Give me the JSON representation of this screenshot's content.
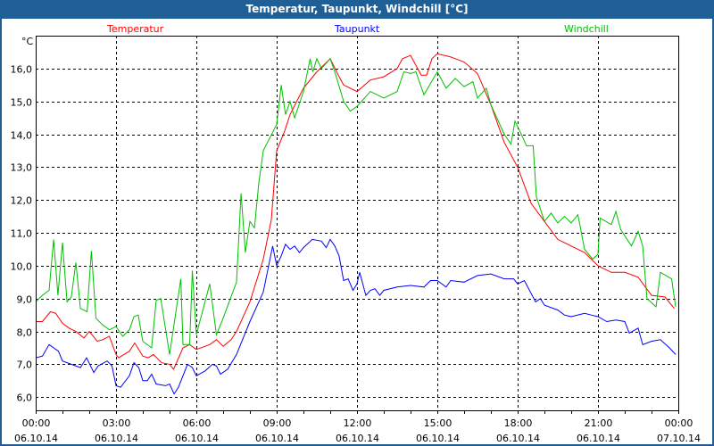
{
  "window": {
    "title": "Temperatur, Taupunkt, Windchill [°C]"
  },
  "chart_data": {
    "type": "line",
    "title": "Temperatur, Taupunkt, Windchill [°C]",
    "ylabel": "°C",
    "xlabel": "",
    "ylim": [
      5.6,
      17.0
    ],
    "xlim": [
      0,
      24
    ],
    "grid": true,
    "legend_placement": "top",
    "yticks": [
      6,
      7,
      8,
      9,
      10,
      11,
      12,
      13,
      14,
      15,
      16
    ],
    "ytick_labels": [
      "6,0",
      "7,0",
      "8,0",
      "9,0",
      "10,0",
      "11,0",
      "12,0",
      "13,0",
      "14,0",
      "15,0",
      "16,0"
    ],
    "xticks": [
      0,
      3,
      6,
      9,
      12,
      15,
      18,
      21,
      24
    ],
    "xtick_labels": [
      {
        "time": "00:00",
        "date": "06.10.14"
      },
      {
        "time": "03:00",
        "date": "06.10.14"
      },
      {
        "time": "06:00",
        "date": "06.10.14"
      },
      {
        "time": "09:00",
        "date": "06.10.14"
      },
      {
        "time": "12:00",
        "date": "06.10.14"
      },
      {
        "time": "15:00",
        "date": "06.10.14"
      },
      {
        "time": "18:00",
        "date": "06.10.14"
      },
      {
        "time": "21:00",
        "date": "06.10.14"
      },
      {
        "time": "00:00",
        "date": "07.10.14"
      }
    ],
    "series": [
      {
        "name": "Temperatur",
        "color": "#ff0000",
        "points": [
          [
            0,
            8.3
          ],
          [
            0.25,
            8.3
          ],
          [
            0.55,
            8.6
          ],
          [
            0.75,
            8.55
          ],
          [
            1,
            8.25
          ],
          [
            1.25,
            8.1
          ],
          [
            1.5,
            8.0
          ],
          [
            1.8,
            7.8
          ],
          [
            2,
            8.0
          ],
          [
            2.3,
            7.7
          ],
          [
            2.5,
            7.75
          ],
          [
            2.75,
            7.85
          ],
          [
            3,
            7.3
          ],
          [
            3.1,
            7.2
          ],
          [
            3.5,
            7.4
          ],
          [
            3.7,
            7.65
          ],
          [
            4,
            7.25
          ],
          [
            4.2,
            7.2
          ],
          [
            4.4,
            7.3
          ],
          [
            4.7,
            7.05
          ],
          [
            5,
            7.0
          ],
          [
            5.15,
            6.85
          ],
          [
            5.5,
            7.5
          ],
          [
            5.75,
            7.6
          ],
          [
            6,
            7.45
          ],
          [
            6.5,
            7.6
          ],
          [
            6.75,
            7.75
          ],
          [
            7,
            7.55
          ],
          [
            7.3,
            7.75
          ],
          [
            7.5,
            8.0
          ],
          [
            8,
            8.9
          ],
          [
            8.5,
            10.2
          ],
          [
            8.8,
            11.4
          ],
          [
            9,
            13.5
          ],
          [
            9.3,
            14.1
          ],
          [
            9.5,
            14.6
          ],
          [
            10,
            15.4
          ],
          [
            10.5,
            15.9
          ],
          [
            11,
            16.3
          ],
          [
            11.3,
            15.8
          ],
          [
            11.5,
            15.5
          ],
          [
            12,
            15.3
          ],
          [
            12.5,
            15.65
          ],
          [
            13,
            15.75
          ],
          [
            13.5,
            16.0
          ],
          [
            13.7,
            16.3
          ],
          [
            14,
            16.4
          ],
          [
            14.2,
            16.1
          ],
          [
            14.4,
            15.8
          ],
          [
            14.6,
            15.8
          ],
          [
            14.8,
            16.3
          ],
          [
            15,
            16.45
          ],
          [
            15.5,
            16.35
          ],
          [
            16,
            16.2
          ],
          [
            16.5,
            15.85
          ],
          [
            17,
            14.9
          ],
          [
            17.5,
            13.75
          ],
          [
            18,
            13.0
          ],
          [
            18.5,
            11.9
          ],
          [
            19,
            11.35
          ],
          [
            19.5,
            10.8
          ],
          [
            20,
            10.6
          ],
          [
            20.5,
            10.4
          ],
          [
            21,
            10.0
          ],
          [
            21.5,
            9.8
          ],
          [
            22,
            9.8
          ],
          [
            22.5,
            9.65
          ],
          [
            23,
            9.1
          ],
          [
            23.5,
            9.05
          ],
          [
            23.85,
            8.7
          ]
        ]
      },
      {
        "name": "Taupunkt",
        "color": "#0000ff",
        "points": [
          [
            0,
            7.2
          ],
          [
            0.25,
            7.25
          ],
          [
            0.5,
            7.6
          ],
          [
            0.85,
            7.4
          ],
          [
            1,
            7.1
          ],
          [
            1.33,
            7.0
          ],
          [
            1.67,
            6.9
          ],
          [
            1.9,
            7.2
          ],
          [
            2.17,
            6.75
          ],
          [
            2.33,
            6.95
          ],
          [
            2.67,
            7.1
          ],
          [
            2.85,
            6.95
          ],
          [
            3,
            6.35
          ],
          [
            3.17,
            6.3
          ],
          [
            3.5,
            6.65
          ],
          [
            3.67,
            7.05
          ],
          [
            3.85,
            6.9
          ],
          [
            4,
            6.5
          ],
          [
            4.17,
            6.5
          ],
          [
            4.33,
            6.7
          ],
          [
            4.5,
            6.4
          ],
          [
            4.85,
            6.35
          ],
          [
            5,
            6.4
          ],
          [
            5.17,
            6.1
          ],
          [
            5.33,
            6.3
          ],
          [
            5.67,
            7.0
          ],
          [
            5.85,
            6.9
          ],
          [
            6,
            6.65
          ],
          [
            6.33,
            6.8
          ],
          [
            6.6,
            7.0
          ],
          [
            6.75,
            6.95
          ],
          [
            6.9,
            6.7
          ],
          [
            7.17,
            6.85
          ],
          [
            7.5,
            7.3
          ],
          [
            8,
            8.3
          ],
          [
            8.5,
            9.2
          ],
          [
            8.85,
            10.6
          ],
          [
            9,
            10.0
          ],
          [
            9.17,
            10.3
          ],
          [
            9.33,
            10.65
          ],
          [
            9.5,
            10.5
          ],
          [
            9.67,
            10.6
          ],
          [
            9.85,
            10.4
          ],
          [
            10,
            10.55
          ],
          [
            10.33,
            10.8
          ],
          [
            10.67,
            10.75
          ],
          [
            10.85,
            10.55
          ],
          [
            11,
            10.8
          ],
          [
            11.17,
            10.6
          ],
          [
            11.33,
            10.3
          ],
          [
            11.5,
            9.55
          ],
          [
            11.67,
            9.6
          ],
          [
            11.85,
            9.25
          ],
          [
            12,
            9.45
          ],
          [
            12.1,
            9.8
          ],
          [
            12.33,
            9.1
          ],
          [
            12.5,
            9.25
          ],
          [
            12.67,
            9.3
          ],
          [
            12.85,
            9.1
          ],
          [
            13,
            9.25
          ],
          [
            13.5,
            9.35
          ],
          [
            14,
            9.4
          ],
          [
            14.5,
            9.35
          ],
          [
            14.75,
            9.55
          ],
          [
            15,
            9.55
          ],
          [
            15.33,
            9.35
          ],
          [
            15.5,
            9.55
          ],
          [
            16,
            9.5
          ],
          [
            16.5,
            9.7
          ],
          [
            17,
            9.75
          ],
          [
            17.5,
            9.6
          ],
          [
            17.85,
            9.6
          ],
          [
            18,
            9.45
          ],
          [
            18.25,
            9.55
          ],
          [
            18.67,
            8.9
          ],
          [
            18.85,
            9.0
          ],
          [
            19,
            8.8
          ],
          [
            19.5,
            8.65
          ],
          [
            19.75,
            8.5
          ],
          [
            20,
            8.45
          ],
          [
            20.5,
            8.55
          ],
          [
            20.75,
            8.5
          ],
          [
            21,
            8.45
          ],
          [
            21.33,
            8.3
          ],
          [
            21.67,
            8.35
          ],
          [
            22,
            8.3
          ],
          [
            22.17,
            7.95
          ],
          [
            22.5,
            8.1
          ],
          [
            22.67,
            7.6
          ],
          [
            23,
            7.7
          ],
          [
            23.33,
            7.75
          ],
          [
            23.67,
            7.5
          ],
          [
            23.9,
            7.3
          ]
        ]
      },
      {
        "name": "Windchill",
        "color": "#00c000",
        "points": [
          [
            0,
            8.9
          ],
          [
            0.25,
            9.1
          ],
          [
            0.5,
            9.25
          ],
          [
            0.67,
            10.8
          ],
          [
            0.83,
            9.1
          ],
          [
            1,
            10.7
          ],
          [
            1.17,
            8.9
          ],
          [
            1.33,
            9.05
          ],
          [
            1.5,
            10.1
          ],
          [
            1.67,
            8.7
          ],
          [
            1.92,
            8.6
          ],
          [
            2.08,
            10.45
          ],
          [
            2.25,
            8.4
          ],
          [
            2.5,
            8.2
          ],
          [
            2.75,
            8.05
          ],
          [
            3,
            8.15
          ],
          [
            3.25,
            7.85
          ],
          [
            3.5,
            8.05
          ],
          [
            3.67,
            8.45
          ],
          [
            3.83,
            8.5
          ],
          [
            4,
            7.7
          ],
          [
            4.33,
            7.5
          ],
          [
            4.5,
            8.95
          ],
          [
            4.67,
            9.0
          ],
          [
            5,
            7.3
          ],
          [
            5.42,
            9.6
          ],
          [
            5.5,
            7.6
          ],
          [
            5.75,
            7.6
          ],
          [
            5.85,
            9.85
          ],
          [
            6,
            7.9
          ],
          [
            6.5,
            9.45
          ],
          [
            6.75,
            7.9
          ],
          [
            7,
            8.4
          ],
          [
            7.5,
            9.5
          ],
          [
            7.67,
            12.2
          ],
          [
            7.83,
            10.4
          ],
          [
            8,
            11.35
          ],
          [
            8.17,
            11.15
          ],
          [
            8.33,
            12.5
          ],
          [
            8.5,
            13.5
          ],
          [
            8.75,
            13.9
          ],
          [
            9,
            14.3
          ],
          [
            9.17,
            15.5
          ],
          [
            9.33,
            14.6
          ],
          [
            9.5,
            15.0
          ],
          [
            9.67,
            14.5
          ],
          [
            10,
            15.3
          ],
          [
            10.25,
            16.3
          ],
          [
            10.35,
            15.9
          ],
          [
            10.5,
            16.3
          ],
          [
            10.67,
            16.0
          ],
          [
            11,
            16.3
          ],
          [
            11.17,
            15.9
          ],
          [
            11.5,
            15.0
          ],
          [
            11.75,
            14.7
          ],
          [
            12,
            14.85
          ],
          [
            12.5,
            15.3
          ],
          [
            13,
            15.1
          ],
          [
            13.5,
            15.3
          ],
          [
            13.75,
            15.9
          ],
          [
            14,
            15.85
          ],
          [
            14.2,
            15.9
          ],
          [
            14.5,
            15.2
          ],
          [
            15,
            15.9
          ],
          [
            15.33,
            15.4
          ],
          [
            15.67,
            15.7
          ],
          [
            16,
            15.45
          ],
          [
            16.33,
            15.6
          ],
          [
            16.5,
            15.1
          ],
          [
            16.83,
            15.4
          ],
          [
            17,
            14.9
          ],
          [
            17.5,
            14.0
          ],
          [
            17.75,
            13.7
          ],
          [
            17.9,
            14.4
          ],
          [
            18.08,
            14.1
          ],
          [
            18.33,
            13.65
          ],
          [
            18.58,
            13.65
          ],
          [
            18.7,
            12.1
          ],
          [
            19,
            11.35
          ],
          [
            19.25,
            11.6
          ],
          [
            19.5,
            11.3
          ],
          [
            19.75,
            11.5
          ],
          [
            20,
            11.3
          ],
          [
            20.25,
            11.55
          ],
          [
            20.5,
            10.5
          ],
          [
            20.8,
            10.2
          ],
          [
            21,
            10.35
          ],
          [
            21.08,
            11.45
          ],
          [
            21.5,
            11.25
          ],
          [
            21.67,
            11.65
          ],
          [
            21.85,
            11.1
          ],
          [
            22.25,
            10.6
          ],
          [
            22.5,
            11.05
          ],
          [
            22.67,
            10.6
          ],
          [
            22.83,
            9.0
          ],
          [
            23.17,
            8.75
          ],
          [
            23.33,
            9.8
          ],
          [
            23.75,
            9.6
          ],
          [
            23.9,
            8.75
          ]
        ]
      }
    ]
  }
}
